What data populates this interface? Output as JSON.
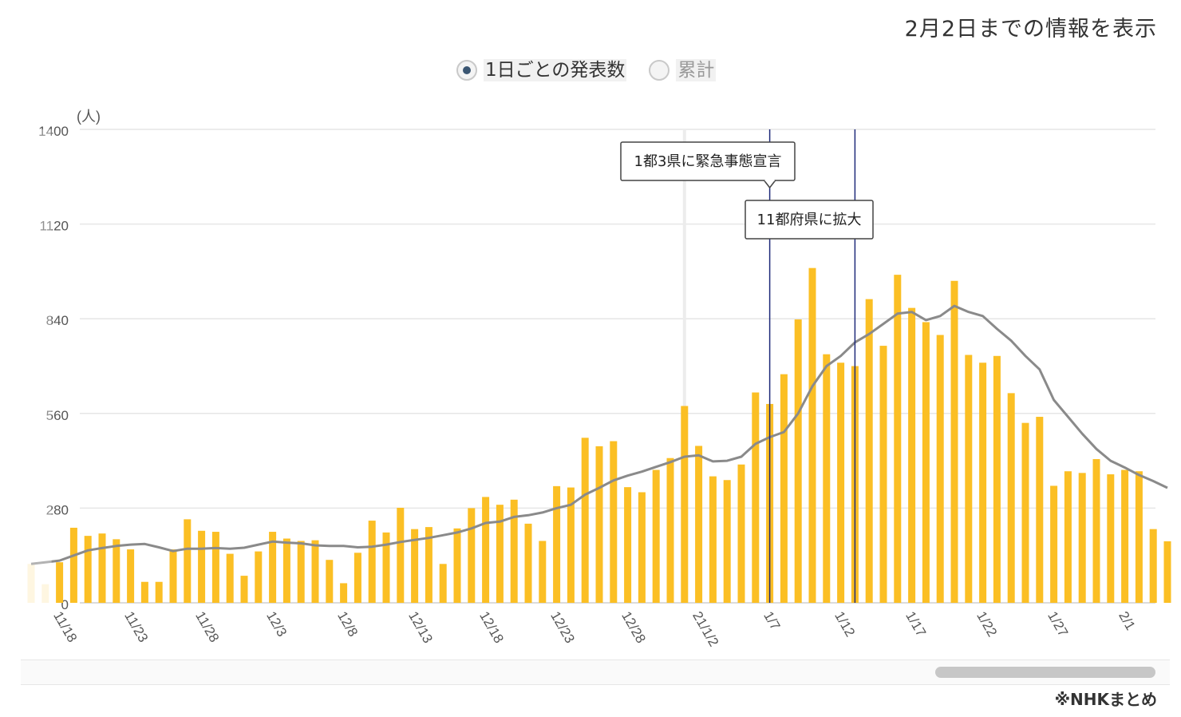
{
  "header": {
    "note": "2月2日までの情報を表示"
  },
  "toggle": {
    "options": [
      {
        "label": "1日ごとの発表数",
        "selected": true
      },
      {
        "label": "累計",
        "selected": false
      }
    ]
  },
  "source": {
    "text": "※NHKまとめ"
  },
  "chart_data": {
    "type": "bar",
    "unit_label": "(人)",
    "ylim": [
      0,
      1400
    ],
    "y_ticks": [
      0,
      280,
      560,
      840,
      1120,
      1400
    ],
    "grid": true,
    "start_date": "2020-11-16",
    "end_date": "2021-02-01",
    "x_tick_labels": [
      {
        "date": "2020-11-18",
        "label": "11/18"
      },
      {
        "date": "2020-11-23",
        "label": "11/23"
      },
      {
        "date": "2020-11-28",
        "label": "11/28"
      },
      {
        "date": "2020-12-03",
        "label": "12/3"
      },
      {
        "date": "2020-12-08",
        "label": "12/8"
      },
      {
        "date": "2020-12-13",
        "label": "12/13"
      },
      {
        "date": "2020-12-18",
        "label": "12/18"
      },
      {
        "date": "2020-12-23",
        "label": "12/23"
      },
      {
        "date": "2020-12-28",
        "label": "12/28"
      },
      {
        "date": "2021-01-02",
        "label": "21/1/2"
      },
      {
        "date": "2021-01-07",
        "label": "1/7"
      },
      {
        "date": "2021-01-12",
        "label": "1/12"
      },
      {
        "date": "2021-01-17",
        "label": "1/17"
      },
      {
        "date": "2021-01-22",
        "label": "1/22"
      },
      {
        "date": "2021-01-27",
        "label": "1/27"
      },
      {
        "date": "2021-02-01",
        "label": "2/1"
      }
    ],
    "series": [
      {
        "type": "bar",
        "color": "#fbbf24",
        "faded_color": "#fdf1d2",
        "values": [
          115,
          55,
          120,
          222,
          198,
          205,
          188,
          158,
          62,
          62,
          158,
          247,
          213,
          210,
          145,
          80,
          152,
          210,
          190,
          183,
          185,
          127,
          58,
          148,
          243,
          208,
          281,
          218,
          224,
          115,
          220,
          280,
          313,
          290,
          305,
          234,
          183,
          345,
          341,
          488,
          463,
          478,
          342,
          327,
          393,
          428,
          582,
          464,
          374,
          363,
          409,
          622,
          588,
          676,
          838,
          990,
          735,
          710,
          700,
          898,
          760,
          970,
          872,
          830,
          792,
          952,
          733,
          710,
          730,
          620,
          532,
          550,
          346,
          389,
          384,
          425,
          380,
          393,
          389,
          218,
          182
        ]
      },
      {
        "type": "line",
        "color": "#8a8a8a",
        "values": [
          115,
          120,
          125,
          140,
          155,
          162,
          168,
          172,
          174,
          164,
          153,
          160,
          160,
          162,
          160,
          163,
          172,
          181,
          178,
          176,
          170,
          168,
          168,
          164,
          166,
          172,
          180,
          186,
          192,
          200,
          208,
          220,
          236,
          240,
          254,
          259,
          267,
          280,
          290,
          320,
          340,
          362,
          376,
          388,
          402,
          416,
          432,
          436,
          418,
          420,
          432,
          470,
          490,
          505,
          560,
          640,
          700,
          730,
          770,
          795,
          825,
          855,
          860,
          836,
          848,
          878,
          860,
          848,
          810,
          775,
          730,
          690,
          600,
          550,
          500,
          455,
          420,
          400,
          378,
          360,
          340
        ]
      }
    ],
    "events": [
      {
        "date": "2021-01-07",
        "label": "1都3県に緊急事態宣言"
      },
      {
        "date": "2021-01-13",
        "label": "11都府県に拡大"
      }
    ],
    "highlight_date": "2021-01-01"
  }
}
